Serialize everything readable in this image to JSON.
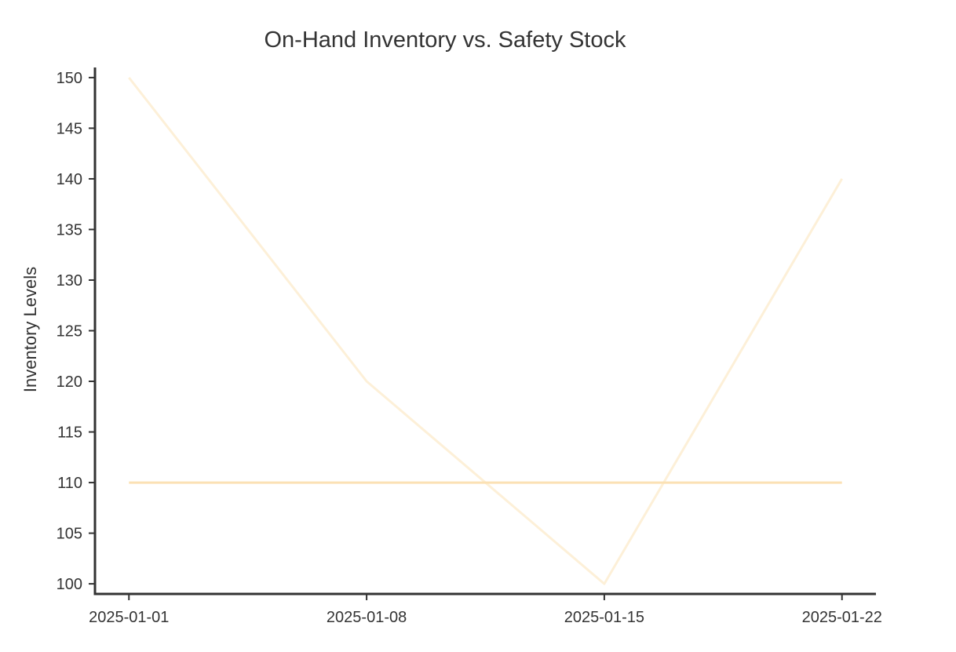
{
  "chart_data": {
    "type": "line",
    "title": "On-Hand Inventory vs. Safety Stock",
    "xlabel": "",
    "ylabel": "Inventory Levels",
    "x": [
      "2025-01-01",
      "2025-01-08",
      "2025-01-15",
      "2025-01-22"
    ],
    "xlim": [
      "2024-12-31",
      "2025-01-23"
    ],
    "ylim": [
      99,
      151
    ],
    "yticks": [
      100,
      105,
      110,
      115,
      120,
      125,
      130,
      135,
      140,
      145,
      150
    ],
    "grid": false,
    "legend": "none",
    "series": [
      {
        "values": [
          150,
          120,
          100,
          140
        ],
        "color": "#fdf0d8"
      },
      {
        "values": [
          110,
          110,
          110,
          110
        ],
        "color": "#fbe1b4"
      }
    ]
  }
}
